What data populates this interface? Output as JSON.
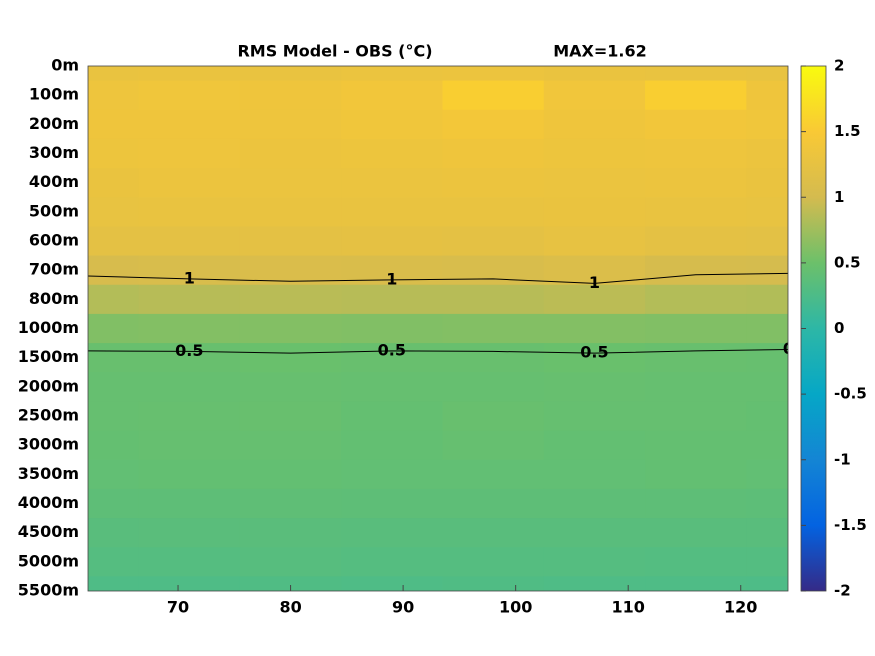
{
  "chart_data": {
    "type": "contour",
    "title": "RMS Model - OBS (°C)",
    "annotation": "MAX=1.62",
    "x": [
      62,
      71,
      80,
      89,
      98,
      107,
      116,
      125
    ],
    "xlim": [
      62,
      124.2
    ],
    "xticks": [
      70,
      80,
      90,
      100,
      110,
      120
    ],
    "y_categories": [
      "0m",
      "100m",
      "200m",
      "300m",
      "400m",
      "500m",
      "600m",
      "700m",
      "800m",
      "1000m",
      "1500m",
      "2000m",
      "2500m",
      "3000m",
      "3500m",
      "4000m",
      "4500m",
      "5000m",
      "5500m"
    ],
    "z": [
      [
        1.28,
        1.3,
        1.29,
        1.31,
        1.33,
        1.3,
        1.29,
        1.27
      ],
      [
        1.35,
        1.38,
        1.36,
        1.4,
        1.55,
        1.39,
        1.55,
        1.36
      ],
      [
        1.36,
        1.37,
        1.35,
        1.38,
        1.42,
        1.37,
        1.4,
        1.38
      ],
      [
        1.34,
        1.35,
        1.33,
        1.34,
        1.36,
        1.34,
        1.35,
        1.33
      ],
      [
        1.3,
        1.32,
        1.31,
        1.31,
        1.32,
        1.31,
        1.32,
        1.3
      ],
      [
        1.27,
        1.28,
        1.28,
        1.29,
        1.28,
        1.3,
        1.28,
        1.27
      ],
      [
        1.21,
        1.22,
        1.22,
        1.23,
        1.22,
        1.25,
        1.21,
        1.2
      ],
      [
        1.04,
        1.06,
        1.08,
        1.07,
        1.06,
        1.1,
        1.03,
        1.02
      ],
      [
        0.84,
        0.86,
        0.87,
        0.86,
        0.86,
        0.88,
        0.84,
        0.83
      ],
      [
        0.6,
        0.61,
        0.61,
        0.6,
        0.61,
        0.61,
        0.6,
        0.6
      ],
      [
        0.47,
        0.47,
        0.48,
        0.47,
        0.47,
        0.48,
        0.47,
        0.46
      ],
      [
        0.45,
        0.45,
        0.46,
        0.45,
        0.45,
        0.46,
        0.45,
        0.45
      ],
      [
        0.45,
        0.46,
        0.47,
        0.44,
        0.47,
        0.45,
        0.45,
        0.44
      ],
      [
        0.44,
        0.45,
        0.45,
        0.43,
        0.45,
        0.43,
        0.44,
        0.44
      ],
      [
        0.42,
        0.43,
        0.43,
        0.42,
        0.42,
        0.42,
        0.43,
        0.42
      ],
      [
        0.39,
        0.39,
        0.4,
        0.39,
        0.39,
        0.39,
        0.39,
        0.38
      ],
      [
        0.35,
        0.36,
        0.36,
        0.35,
        0.35,
        0.35,
        0.35,
        0.35
      ],
      [
        0.32,
        0.32,
        0.33,
        0.32,
        0.32,
        0.32,
        0.31,
        0.31
      ],
      [
        0.27,
        0.27,
        0.28,
        0.27,
        0.28,
        0.27,
        0.27,
        0.26
      ]
    ],
    "contour_levels": [
      0.5,
      1,
      1.5
    ],
    "colormap": "parula",
    "clim": [
      -2,
      2
    ],
    "cticks": [
      -2,
      -1.5,
      -1,
      -0.5,
      0,
      0.5,
      1,
      1.5,
      2
    ]
  }
}
